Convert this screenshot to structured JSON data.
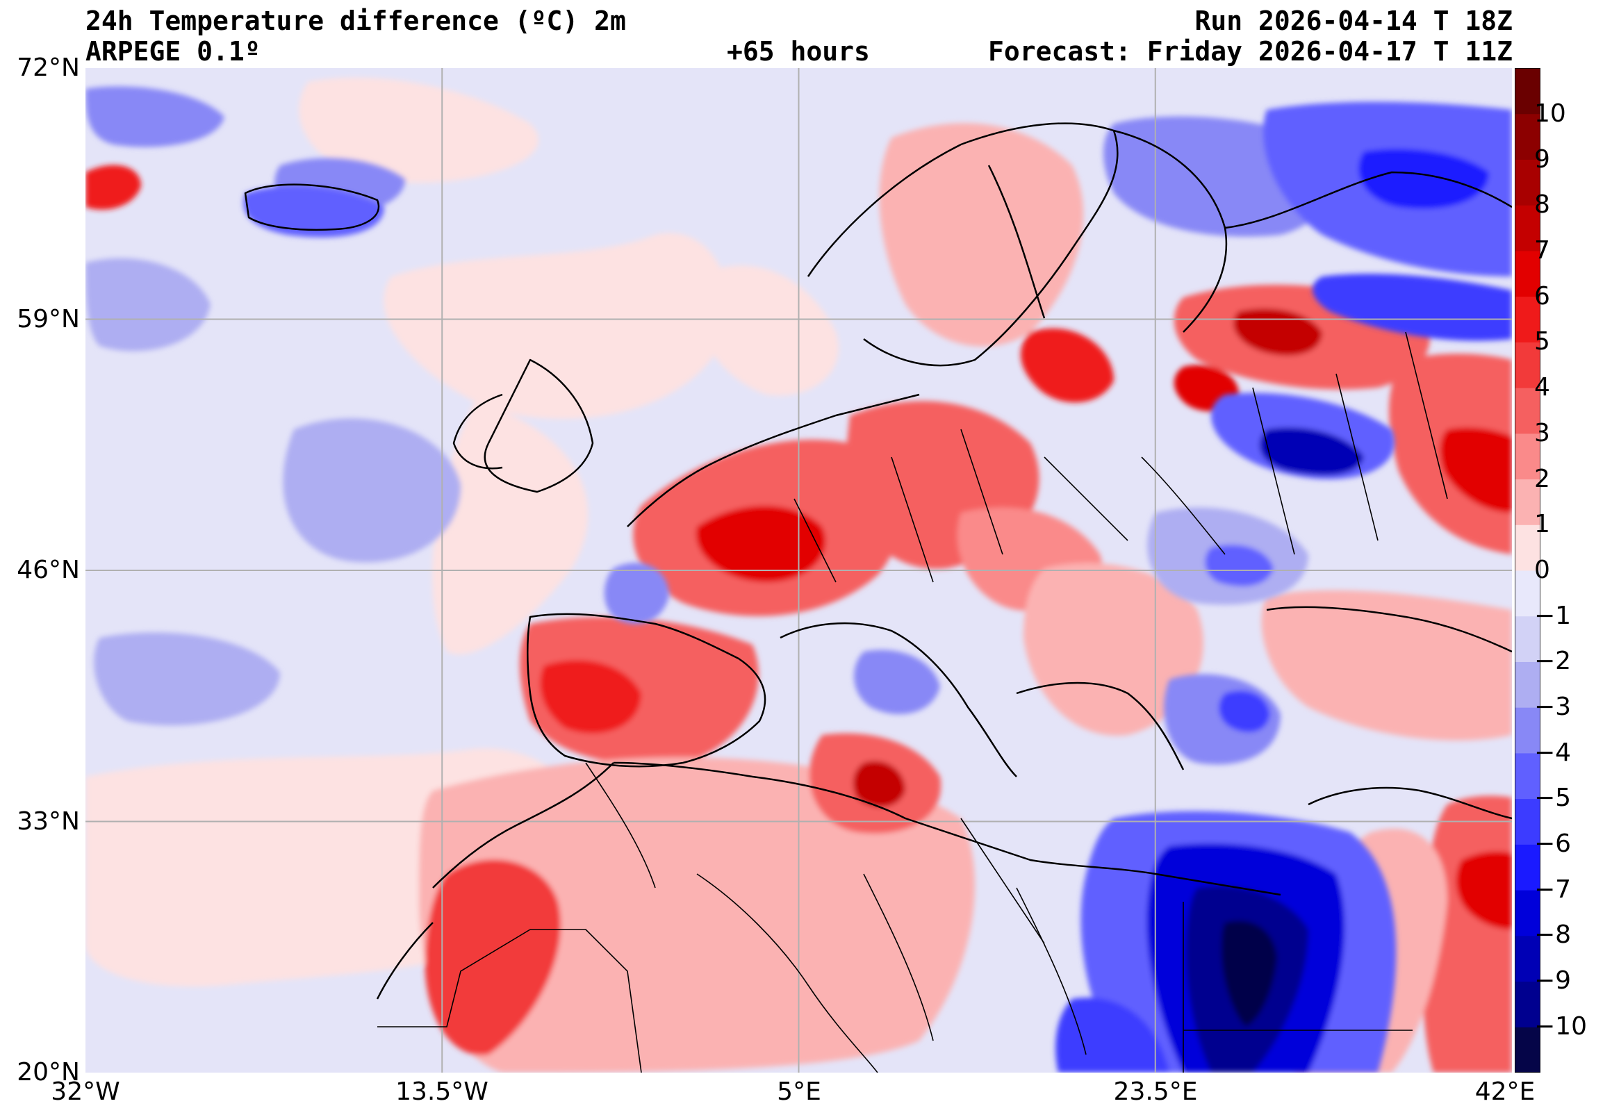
{
  "header": {
    "title": "24h Temperature difference (ºC) 2m",
    "model": "ARPEGE 0.1º",
    "lead_time": "+65 hours",
    "run": "Run 2026-04-14 T 18Z",
    "forecast": "Forecast: Friday 2026-04-17 T 11Z"
  },
  "axes": {
    "lat_labels": [
      "72°N",
      "59°N",
      "46°N",
      "33°N",
      "20°N"
    ],
    "lon_labels": [
      "32°W",
      "13.5°W",
      "5°E",
      "23.5°E",
      "42°E"
    ]
  },
  "colorbar": {
    "labels": [
      "10",
      "9",
      "8",
      "7",
      "6",
      "5",
      "4",
      "3",
      "2",
      "1",
      "0",
      "−1",
      "−2",
      "−3",
      "−4",
      "−5",
      "−6",
      "−7",
      "−8",
      "−9",
      "−10"
    ],
    "colors": [
      "#050548",
      "#00008f",
      "#0000b5",
      "#0000da",
      "#1a1aff",
      "#3c3cff",
      "#6060ff",
      "#8888f6",
      "#aeaef2",
      "#d2d2f6",
      "#e8e8fb",
      "#fde2e2",
      "#fbb2b2",
      "#fa8a8a",
      "#f56060",
      "#f23a3a",
      "#ef1a1a",
      "#e20000",
      "#c40000",
      "#a80000",
      "#8c0000",
      "#6a0000"
    ]
  },
  "map": {
    "projection": "equirectangular",
    "lon_range": [
      -32,
      42
    ],
    "lat_range": [
      20,
      72
    ],
    "background_color": "#e4e4f8"
  }
}
